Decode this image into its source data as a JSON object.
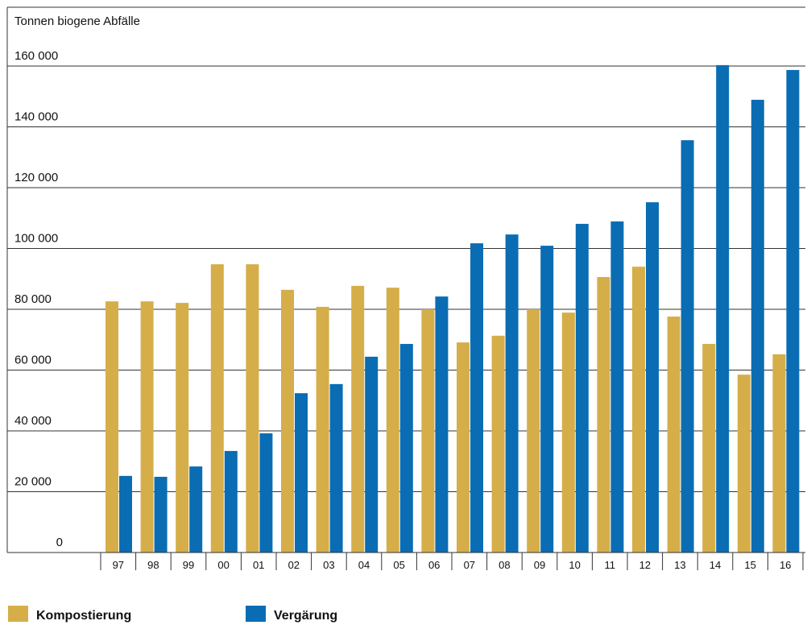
{
  "chart_data": {
    "type": "bar",
    "title": "Tonnen biogene Abfälle",
    "categories": [
      "97",
      "98",
      "99",
      "00",
      "01",
      "02",
      "03",
      "04",
      "05",
      "06",
      "07",
      "08",
      "09",
      "10",
      "11",
      "12",
      "13",
      "14",
      "15",
      "16"
    ],
    "series": [
      {
        "name": "Kompostierung",
        "color": "#d5ae4a",
        "values": [
          82600,
          82600,
          82100,
          94800,
          94800,
          86400,
          80800,
          87700,
          87100,
          80000,
          69100,
          71300,
          80000,
          78900,
          90600,
          94000,
          77600,
          68600,
          58500,
          65200
        ]
      },
      {
        "name": "Vergärung",
        "color": "#0a6db3",
        "values": [
          25200,
          24900,
          28300,
          33400,
          39200,
          52400,
          55400,
          64400,
          68600,
          84200,
          101700,
          104600,
          100900,
          108100,
          108900,
          115200,
          135600,
          160300,
          148900,
          158700
        ]
      }
    ],
    "ylim": [
      0,
      160000
    ],
    "yticks": [
      0,
      {
        "value": 20000,
        "label": "20 000"
      },
      {
        "value": 40000,
        "label": "40 000"
      },
      {
        "value": 60000,
        "label": "60 000"
      },
      {
        "value": 80000,
        "label": "80 000"
      },
      {
        "value": 100000,
        "label": "100 000"
      },
      {
        "value": 120000,
        "label": "120 000"
      },
      {
        "value": 140000,
        "label": "140 000"
      },
      {
        "value": 160000,
        "label": "160 000"
      }
    ],
    "grid": true
  }
}
